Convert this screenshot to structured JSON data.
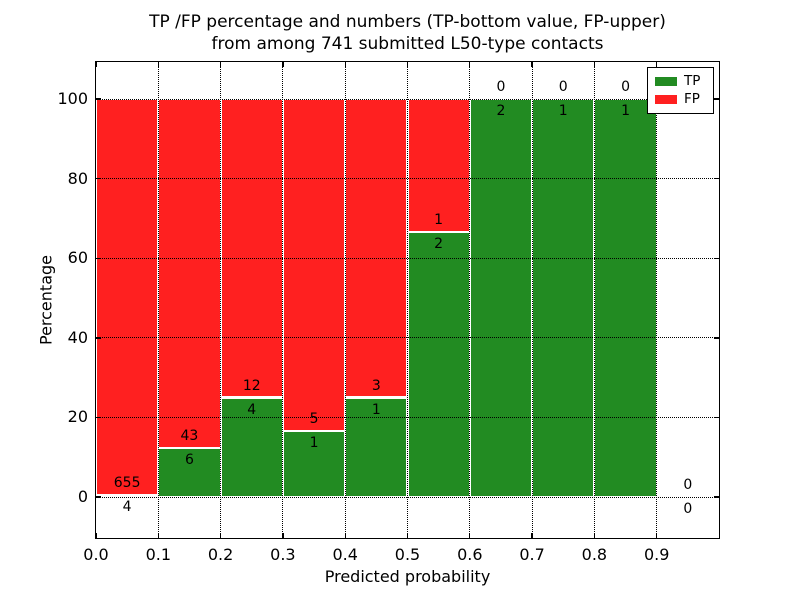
{
  "title": {
    "line1": "TP /FP percentage and numbers (TP-bottom value, FP-upper)",
    "line2": "from among 741 submitted L50-type contacts"
  },
  "chart_data": {
    "type": "bar",
    "stacked": true,
    "normalized": "percent_of_bin_total",
    "title": "TP /FP percentage and numbers (TP-bottom value, FP-upper) from among 741 submitted L50-type contacts",
    "xlabel": "Predicted probability",
    "ylabel": "Percentage",
    "total_contacts": 741,
    "bins": [
      {
        "x0": 0.0,
        "x1": 0.1,
        "tp": 4,
        "fp": 655
      },
      {
        "x0": 0.1,
        "x1": 0.2,
        "tp": 6,
        "fp": 43
      },
      {
        "x0": 0.2,
        "x1": 0.3,
        "tp": 4,
        "fp": 12
      },
      {
        "x0": 0.3,
        "x1": 0.4,
        "tp": 1,
        "fp": 5
      },
      {
        "x0": 0.4,
        "x1": 0.5,
        "tp": 1,
        "fp": 3
      },
      {
        "x0": 0.5,
        "x1": 0.6,
        "tp": 2,
        "fp": 1
      },
      {
        "x0": 0.6,
        "x1": 0.7,
        "tp": 2,
        "fp": 0
      },
      {
        "x0": 0.7,
        "x1": 0.8,
        "tp": 1,
        "fp": 0
      },
      {
        "x0": 0.8,
        "x1": 0.9,
        "tp": 1,
        "fp": 0
      },
      {
        "x0": 0.9,
        "x1": 1.0,
        "tp": 0,
        "fp": 0
      }
    ],
    "series": [
      {
        "name": "TP",
        "color": "#228B22",
        "values": [
          4,
          6,
          4,
          1,
          1,
          2,
          2,
          1,
          1,
          0
        ]
      },
      {
        "name": "FP",
        "color": "#FF2020",
        "values": [
          655,
          43,
          12,
          5,
          3,
          1,
          0,
          0,
          0,
          0
        ]
      }
    ],
    "x_ticks": [
      "0.0",
      "0.1",
      "0.2",
      "0.3",
      "0.4",
      "0.5",
      "0.6",
      "0.7",
      "0.8",
      "0.9"
    ],
    "y_ticks": [
      "0",
      "20",
      "40",
      "60",
      "80",
      "100"
    ],
    "xlim": [
      0.0,
      1.0
    ],
    "ylim": [
      -10.3,
      109.3
    ],
    "grid": "dotted",
    "colors": {
      "tp": "#228B22",
      "fp": "#FF2020",
      "grid": "#000000",
      "frame": "#000000"
    },
    "legend": {
      "position": "upper right",
      "entries": [
        {
          "label": "TP",
          "color": "#228B22"
        },
        {
          "label": "FP",
          "color": "#FF2020"
        }
      ]
    }
  }
}
